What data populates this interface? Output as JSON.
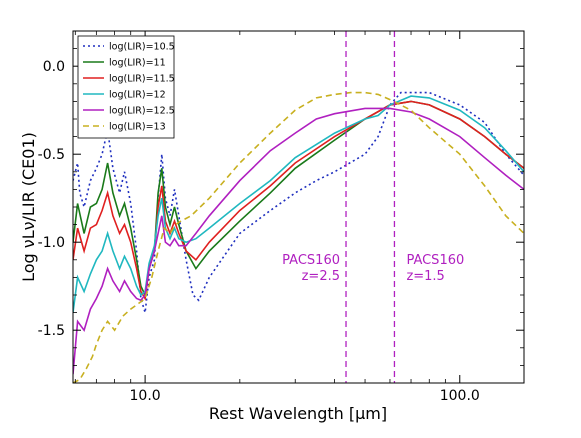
{
  "chart_data": {
    "type": "line",
    "xlabel": "Rest Wavelength [μm]",
    "ylabel": "Log νLν/LIR (CE01)",
    "xscale": "log",
    "xlim": [
      5.9,
      160
    ],
    "ylim": [
      -1.8,
      0.2
    ],
    "xticks": [
      {
        "value": 10,
        "label": "10.0"
      },
      {
        "value": 100,
        "label": "100.0"
      }
    ],
    "yticks": [
      {
        "value": 0.0,
        "label": "0.0"
      },
      {
        "value": -0.5,
        "label": "-0.5"
      },
      {
        "value": -1.0,
        "label": "-1.0"
      },
      {
        "value": -1.5,
        "label": "-1.5"
      }
    ],
    "grid": false,
    "legend_position": "top-left",
    "series": [
      {
        "name": "log(LIR)=10.5",
        "color": "#1f2fbf",
        "dash": "dotted",
        "points": [
          [
            5.9,
            -0.65
          ],
          [
            6.1,
            -0.55
          ],
          [
            6.2,
            -0.72
          ],
          [
            6.4,
            -0.8
          ],
          [
            6.7,
            -0.65
          ],
          [
            7.0,
            -0.58
          ],
          [
            7.3,
            -0.5
          ],
          [
            7.6,
            -0.36
          ],
          [
            7.9,
            -0.58
          ],
          [
            8.3,
            -0.72
          ],
          [
            8.6,
            -0.6
          ],
          [
            9.0,
            -0.78
          ],
          [
            9.4,
            -1.05
          ],
          [
            9.7,
            -1.32
          ],
          [
            10.0,
            -1.4
          ],
          [
            10.3,
            -1.2
          ],
          [
            10.7,
            -1.1
          ],
          [
            11.0,
            -0.75
          ],
          [
            11.3,
            -0.5
          ],
          [
            11.6,
            -0.75
          ],
          [
            12.0,
            -0.85
          ],
          [
            12.4,
            -0.7
          ],
          [
            12.8,
            -0.85
          ],
          [
            13.5,
            -1.1
          ],
          [
            14.2,
            -1.3
          ],
          [
            14.8,
            -1.33
          ],
          [
            16,
            -1.2
          ],
          [
            20,
            -0.95
          ],
          [
            25,
            -0.82
          ],
          [
            30,
            -0.72
          ],
          [
            35,
            -0.65
          ],
          [
            40,
            -0.6
          ],
          [
            50,
            -0.5
          ],
          [
            55,
            -0.4
          ],
          [
            60,
            -0.22
          ],
          [
            65,
            -0.15
          ],
          [
            80,
            -0.15
          ],
          [
            100,
            -0.22
          ],
          [
            120,
            -0.32
          ],
          [
            140,
            -0.5
          ],
          [
            160,
            -0.62
          ]
        ]
      },
      {
        "name": "log(LIR)=11",
        "color": "#1a7a1a",
        "dash": "solid",
        "points": [
          [
            5.9,
            -1.0
          ],
          [
            6.1,
            -0.78
          ],
          [
            6.4,
            -0.95
          ],
          [
            6.7,
            -0.8
          ],
          [
            7.0,
            -0.78
          ],
          [
            7.3,
            -0.7
          ],
          [
            7.6,
            -0.55
          ],
          [
            7.9,
            -0.72
          ],
          [
            8.3,
            -0.85
          ],
          [
            8.6,
            -0.78
          ],
          [
            9.0,
            -0.92
          ],
          [
            9.4,
            -1.1
          ],
          [
            9.7,
            -1.25
          ],
          [
            10.0,
            -1.3
          ],
          [
            10.3,
            -1.15
          ],
          [
            10.7,
            -1.05
          ],
          [
            11.0,
            -0.72
          ],
          [
            11.3,
            -0.58
          ],
          [
            11.6,
            -0.8
          ],
          [
            12.0,
            -0.9
          ],
          [
            12.4,
            -0.8
          ],
          [
            12.8,
            -0.9
          ],
          [
            13.5,
            -1.05
          ],
          [
            14.5,
            -1.15
          ],
          [
            16,
            -1.05
          ],
          [
            20,
            -0.88
          ],
          [
            25,
            -0.72
          ],
          [
            30,
            -0.58
          ],
          [
            40,
            -0.42
          ],
          [
            50,
            -0.3
          ],
          [
            60,
            -0.22
          ],
          [
            70,
            -0.2
          ],
          [
            80,
            -0.22
          ],
          [
            100,
            -0.3
          ],
          [
            120,
            -0.4
          ],
          [
            140,
            -0.5
          ],
          [
            160,
            -0.58
          ]
        ]
      },
      {
        "name": "log(LIR)=11.5",
        "color": "#e02020",
        "dash": "solid",
        "points": [
          [
            5.9,
            -1.1
          ],
          [
            6.1,
            -0.92
          ],
          [
            6.4,
            -1.05
          ],
          [
            6.7,
            -0.92
          ],
          [
            7.0,
            -0.9
          ],
          [
            7.3,
            -0.82
          ],
          [
            7.6,
            -0.72
          ],
          [
            7.9,
            -0.85
          ],
          [
            8.3,
            -0.95
          ],
          [
            8.6,
            -0.9
          ],
          [
            9.0,
            -1.0
          ],
          [
            9.4,
            -1.15
          ],
          [
            9.7,
            -1.28
          ],
          [
            10.0,
            -1.32
          ],
          [
            10.3,
            -1.15
          ],
          [
            10.7,
            -1.05
          ],
          [
            11.0,
            -0.8
          ],
          [
            11.3,
            -0.68
          ],
          [
            11.6,
            -0.88
          ],
          [
            12.0,
            -0.95
          ],
          [
            12.4,
            -0.88
          ],
          [
            12.8,
            -0.95
          ],
          [
            13.5,
            -1.05
          ],
          [
            14.5,
            -1.1
          ],
          [
            16,
            -1.0
          ],
          [
            20,
            -0.82
          ],
          [
            25,
            -0.68
          ],
          [
            30,
            -0.55
          ],
          [
            40,
            -0.4
          ],
          [
            50,
            -0.3
          ],
          [
            60,
            -0.22
          ],
          [
            70,
            -0.2
          ],
          [
            80,
            -0.22
          ],
          [
            100,
            -0.3
          ],
          [
            120,
            -0.4
          ],
          [
            140,
            -0.5
          ],
          [
            160,
            -0.58
          ]
        ]
      },
      {
        "name": "log(LIR)=12",
        "color": "#20b8c0",
        "dash": "solid",
        "points": [
          [
            5.9,
            -1.4
          ],
          [
            6.1,
            -1.2
          ],
          [
            6.4,
            -1.28
          ],
          [
            6.7,
            -1.18
          ],
          [
            7.0,
            -1.1
          ],
          [
            7.3,
            -1.05
          ],
          [
            7.6,
            -0.95
          ],
          [
            7.9,
            -1.05
          ],
          [
            8.3,
            -1.15
          ],
          [
            8.6,
            -1.08
          ],
          [
            9.0,
            -1.15
          ],
          [
            9.4,
            -1.25
          ],
          [
            9.7,
            -1.3
          ],
          [
            10.0,
            -1.28
          ],
          [
            10.3,
            -1.12
          ],
          [
            10.7,
            -1.02
          ],
          [
            11.0,
            -0.85
          ],
          [
            11.3,
            -0.75
          ],
          [
            11.6,
            -0.92
          ],
          [
            12.0,
            -0.98
          ],
          [
            12.4,
            -0.92
          ],
          [
            12.8,
            -0.98
          ],
          [
            13.5,
            -1.0
          ],
          [
            14.5,
            -0.98
          ],
          [
            16,
            -0.92
          ],
          [
            20,
            -0.78
          ],
          [
            25,
            -0.65
          ],
          [
            30,
            -0.52
          ],
          [
            40,
            -0.38
          ],
          [
            50,
            -0.3
          ],
          [
            55,
            -0.28
          ],
          [
            60,
            -0.22
          ],
          [
            70,
            -0.17
          ],
          [
            80,
            -0.18
          ],
          [
            100,
            -0.25
          ],
          [
            120,
            -0.35
          ],
          [
            140,
            -0.48
          ],
          [
            160,
            -0.6
          ]
        ]
      },
      {
        "name": "log(LIR)=12.5",
        "color": "#b020c0",
        "dash": "solid",
        "points": [
          [
            5.9,
            -1.75
          ],
          [
            6.1,
            -1.45
          ],
          [
            6.4,
            -1.5
          ],
          [
            6.7,
            -1.38
          ],
          [
            7.0,
            -1.32
          ],
          [
            7.3,
            -1.25
          ],
          [
            7.6,
            -1.15
          ],
          [
            7.9,
            -1.22
          ],
          [
            8.3,
            -1.28
          ],
          [
            8.6,
            -1.22
          ],
          [
            9.0,
            -1.28
          ],
          [
            9.4,
            -1.32
          ],
          [
            9.7,
            -1.33
          ],
          [
            10.0,
            -1.3
          ],
          [
            10.3,
            -1.15
          ],
          [
            10.7,
            -1.05
          ],
          [
            11.0,
            -0.95
          ],
          [
            11.3,
            -0.85
          ],
          [
            11.6,
            -1.0
          ],
          [
            12.0,
            -1.02
          ],
          [
            12.4,
            -0.98
          ],
          [
            12.8,
            -1.02
          ],
          [
            13.5,
            -1.02
          ],
          [
            14.5,
            -0.95
          ],
          [
            16,
            -0.85
          ],
          [
            20,
            -0.65
          ],
          [
            25,
            -0.48
          ],
          [
            30,
            -0.38
          ],
          [
            35,
            -0.3
          ],
          [
            40,
            -0.27
          ],
          [
            50,
            -0.24
          ],
          [
            60,
            -0.24
          ],
          [
            70,
            -0.26
          ],
          [
            80,
            -0.3
          ],
          [
            100,
            -0.4
          ],
          [
            120,
            -0.52
          ],
          [
            140,
            -0.62
          ],
          [
            160,
            -0.7
          ]
        ]
      },
      {
        "name": "log(LIR)=13",
        "color": "#c8b020",
        "dash": "dashed",
        "points": [
          [
            5.9,
            -1.8
          ],
          [
            6.2,
            -1.78
          ],
          [
            6.5,
            -1.72
          ],
          [
            6.8,
            -1.65
          ],
          [
            7.0,
            -1.58
          ],
          [
            7.3,
            -1.5
          ],
          [
            7.6,
            -1.45
          ],
          [
            8.0,
            -1.5
          ],
          [
            8.5,
            -1.42
          ],
          [
            9.0,
            -1.38
          ],
          [
            9.5,
            -1.35
          ],
          [
            10.0,
            -1.32
          ],
          [
            10.5,
            -1.2
          ],
          [
            11.0,
            -1.05
          ],
          [
            11.5,
            -0.92
          ],
          [
            12.0,
            -0.95
          ],
          [
            12.5,
            -0.9
          ],
          [
            13.0,
            -0.88
          ],
          [
            14.0,
            -0.85
          ],
          [
            16,
            -0.75
          ],
          [
            20,
            -0.55
          ],
          [
            25,
            -0.38
          ],
          [
            30,
            -0.25
          ],
          [
            35,
            -0.18
          ],
          [
            40,
            -0.16
          ],
          [
            45,
            -0.15
          ],
          [
            50,
            -0.15
          ],
          [
            55,
            -0.16
          ],
          [
            60,
            -0.19
          ],
          [
            70,
            -0.25
          ],
          [
            80,
            -0.35
          ],
          [
            100,
            -0.5
          ],
          [
            120,
            -0.68
          ],
          [
            140,
            -0.85
          ],
          [
            160,
            -0.95
          ]
        ]
      }
    ],
    "vlines": [
      {
        "x": 43.5,
        "color": "#b020c0",
        "dash": "dashed",
        "label_line1": "PACS160",
        "label_line2": "z=2.5",
        "label_side": "left"
      },
      {
        "x": 62.0,
        "color": "#b020c0",
        "dash": "dashed",
        "label_line1": "PACS160",
        "label_line2": "z=1.5",
        "label_side": "right"
      }
    ]
  }
}
